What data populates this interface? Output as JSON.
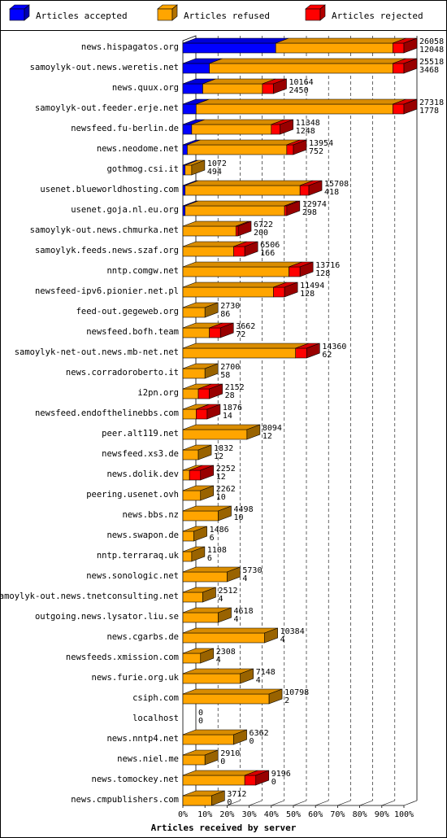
{
  "chart_data": {
    "type": "bar",
    "orientation": "horizontal",
    "stacked": true,
    "style": "3d",
    "xlabel": "Articles received by server",
    "xticks": [
      "0%",
      "10%",
      "20%",
      "30%",
      "40%",
      "50%",
      "60%",
      "70%",
      "80%",
      "90%",
      "100%"
    ],
    "xlim": [
      0,
      100
    ],
    "grid": true,
    "legend_position": "top",
    "legend": [
      {
        "name": "Articles accepted",
        "color": "#0000ff"
      },
      {
        "name": "Articles refused",
        "color": "#ffa500"
      },
      {
        "name": "Articles rejected",
        "color": "#ff0000"
      }
    ],
    "rows": [
      {
        "server": "news.hispagatos.org",
        "total": "26058",
        "rejected": "12048",
        "accepted_pct": 42,
        "refused_pct": 53,
        "rejected_pct": 5
      },
      {
        "server": "samoylyk-out.news.weretis.net",
        "total": "25518",
        "rejected": "3468",
        "accepted_pct": 12,
        "refused_pct": 83,
        "rejected_pct": 5
      },
      {
        "server": "news.quux.org",
        "total": "10164",
        "rejected": "2450",
        "accepted_pct": 9,
        "refused_pct": 27,
        "rejected_pct": 5
      },
      {
        "server": "samoylyk-out.feeder.erje.net",
        "total": "27318",
        "rejected": "1778",
        "accepted_pct": 6,
        "refused_pct": 89,
        "rejected_pct": 5
      },
      {
        "server": "newsfeed.fu-berlin.de",
        "total": "11348",
        "rejected": "1248",
        "accepted_pct": 4,
        "refused_pct": 36,
        "rejected_pct": 4
      },
      {
        "server": "news.neodome.net",
        "total": "13954",
        "rejected": "752",
        "accepted_pct": 2,
        "refused_pct": 45,
        "rejected_pct": 3
      },
      {
        "server": "gothmog.csi.it",
        "total": "1072",
        "rejected": "494",
        "accepted_pct": 1,
        "refused_pct": 3,
        "rejected_pct": 0
      },
      {
        "server": "usenet.blueworldhosting.com",
        "total": "15708",
        "rejected": "418",
        "accepted_pct": 1,
        "refused_pct": 52,
        "rejected_pct": 4
      },
      {
        "server": "usenet.goja.nl.eu.org",
        "total": "12974",
        "rejected": "298",
        "accepted_pct": 1,
        "refused_pct": 45,
        "rejected_pct": 1
      },
      {
        "server": "samoylyk-out.news.chmurka.net",
        "total": "6722",
        "rejected": "200",
        "accepted_pct": 0,
        "refused_pct": 24,
        "rejected_pct": 1
      },
      {
        "server": "samoylyk.feeds.news.szaf.org",
        "total": "6506",
        "rejected": "166",
        "accepted_pct": 0,
        "refused_pct": 23,
        "rejected_pct": 5
      },
      {
        "server": "nntp.comgw.net",
        "total": "13716",
        "rejected": "128",
        "accepted_pct": 0,
        "refused_pct": 48,
        "rejected_pct": 5
      },
      {
        "server": "newsfeed-ipv6.pionier.net.pl",
        "total": "11494",
        "rejected": "128",
        "accepted_pct": 0,
        "refused_pct": 41,
        "rejected_pct": 5
      },
      {
        "server": "feed-out.gegeweb.org",
        "total": "2730",
        "rejected": "86",
        "accepted_pct": 0,
        "refused_pct": 10,
        "rejected_pct": 0
      },
      {
        "server": "newsfeed.bofh.team",
        "total": "3662",
        "rejected": "72",
        "accepted_pct": 0,
        "refused_pct": 12,
        "rejected_pct": 5
      },
      {
        "server": "samoylyk-net-out.news.mb-net.net",
        "total": "14360",
        "rejected": "62",
        "accepted_pct": 0,
        "refused_pct": 51,
        "rejected_pct": 5
      },
      {
        "server": "news.corradoroberto.it",
        "total": "2700",
        "rejected": "58",
        "accepted_pct": 0,
        "refused_pct": 10,
        "rejected_pct": 0
      },
      {
        "server": "i2pn.org",
        "total": "2152",
        "rejected": "28",
        "accepted_pct": 0,
        "refused_pct": 7,
        "rejected_pct": 5
      },
      {
        "server": "newsfeed.endofthelinebbs.com",
        "total": "1876",
        "rejected": "14",
        "accepted_pct": 0,
        "refused_pct": 6,
        "rejected_pct": 5
      },
      {
        "server": "peer.alt119.net",
        "total": "8094",
        "rejected": "12",
        "accepted_pct": 0,
        "refused_pct": 29,
        "rejected_pct": 0
      },
      {
        "server": "newsfeed.xs3.de",
        "total": "1832",
        "rejected": "12",
        "accepted_pct": 0,
        "refused_pct": 7,
        "rejected_pct": 0
      },
      {
        "server": "news.dolik.dev",
        "total": "2252",
        "rejected": "12",
        "accepted_pct": 0,
        "refused_pct": 3,
        "rejected_pct": 5
      },
      {
        "server": "peering.usenet.ovh",
        "total": "2262",
        "rejected": "10",
        "accepted_pct": 0,
        "refused_pct": 8,
        "rejected_pct": 0
      },
      {
        "server": "news.bbs.nz",
        "total": "4498",
        "rejected": "10",
        "accepted_pct": 0,
        "refused_pct": 16,
        "rejected_pct": 0
      },
      {
        "server": "news.swapon.de",
        "total": "1486",
        "rejected": "6",
        "accepted_pct": 0,
        "refused_pct": 5,
        "rejected_pct": 0
      },
      {
        "server": "nntp.terraraq.uk",
        "total": "1108",
        "rejected": "6",
        "accepted_pct": 0,
        "refused_pct": 4,
        "rejected_pct": 0
      },
      {
        "server": "news.sonologic.net",
        "total": "5730",
        "rejected": "4",
        "accepted_pct": 0,
        "refused_pct": 20,
        "rejected_pct": 0
      },
      {
        "server": "samoylyk-out.news.tnetconsulting.net",
        "total": "2512",
        "rejected": "4",
        "accepted_pct": 0,
        "refused_pct": 9,
        "rejected_pct": 0
      },
      {
        "server": "outgoing.news.lysator.liu.se",
        "total": "4618",
        "rejected": "4",
        "accepted_pct": 0,
        "refused_pct": 16,
        "rejected_pct": 0
      },
      {
        "server": "news.cgarbs.de",
        "total": "10384",
        "rejected": "4",
        "accepted_pct": 0,
        "refused_pct": 37,
        "rejected_pct": 0
      },
      {
        "server": "newsfeeds.xmission.com",
        "total": "2308",
        "rejected": "4",
        "accepted_pct": 0,
        "refused_pct": 8,
        "rejected_pct": 0
      },
      {
        "server": "news.furie.org.uk",
        "total": "7148",
        "rejected": "4",
        "accepted_pct": 0,
        "refused_pct": 26,
        "rejected_pct": 0
      },
      {
        "server": "csiph.com",
        "total": "10798",
        "rejected": "2",
        "accepted_pct": 0,
        "refused_pct": 39,
        "rejected_pct": 0
      },
      {
        "server": "localhost",
        "total": "0",
        "rejected": "0",
        "accepted_pct": 0,
        "refused_pct": 0,
        "rejected_pct": 0
      },
      {
        "server": "news.nntp4.net",
        "total": "6362",
        "rejected": "0",
        "accepted_pct": 0,
        "refused_pct": 23,
        "rejected_pct": 0
      },
      {
        "server": "news.niel.me",
        "total": "2910",
        "rejected": "0",
        "accepted_pct": 0,
        "refused_pct": 10,
        "rejected_pct": 0
      },
      {
        "server": "news.tomockey.net",
        "total": "9196",
        "rejected": "0",
        "accepted_pct": 0,
        "refused_pct": 28,
        "rejected_pct": 5
      },
      {
        "server": "news.cmpublishers.com",
        "total": "3712",
        "rejected": "0",
        "accepted_pct": 0,
        "refused_pct": 13,
        "rejected_pct": 0
      }
    ]
  }
}
